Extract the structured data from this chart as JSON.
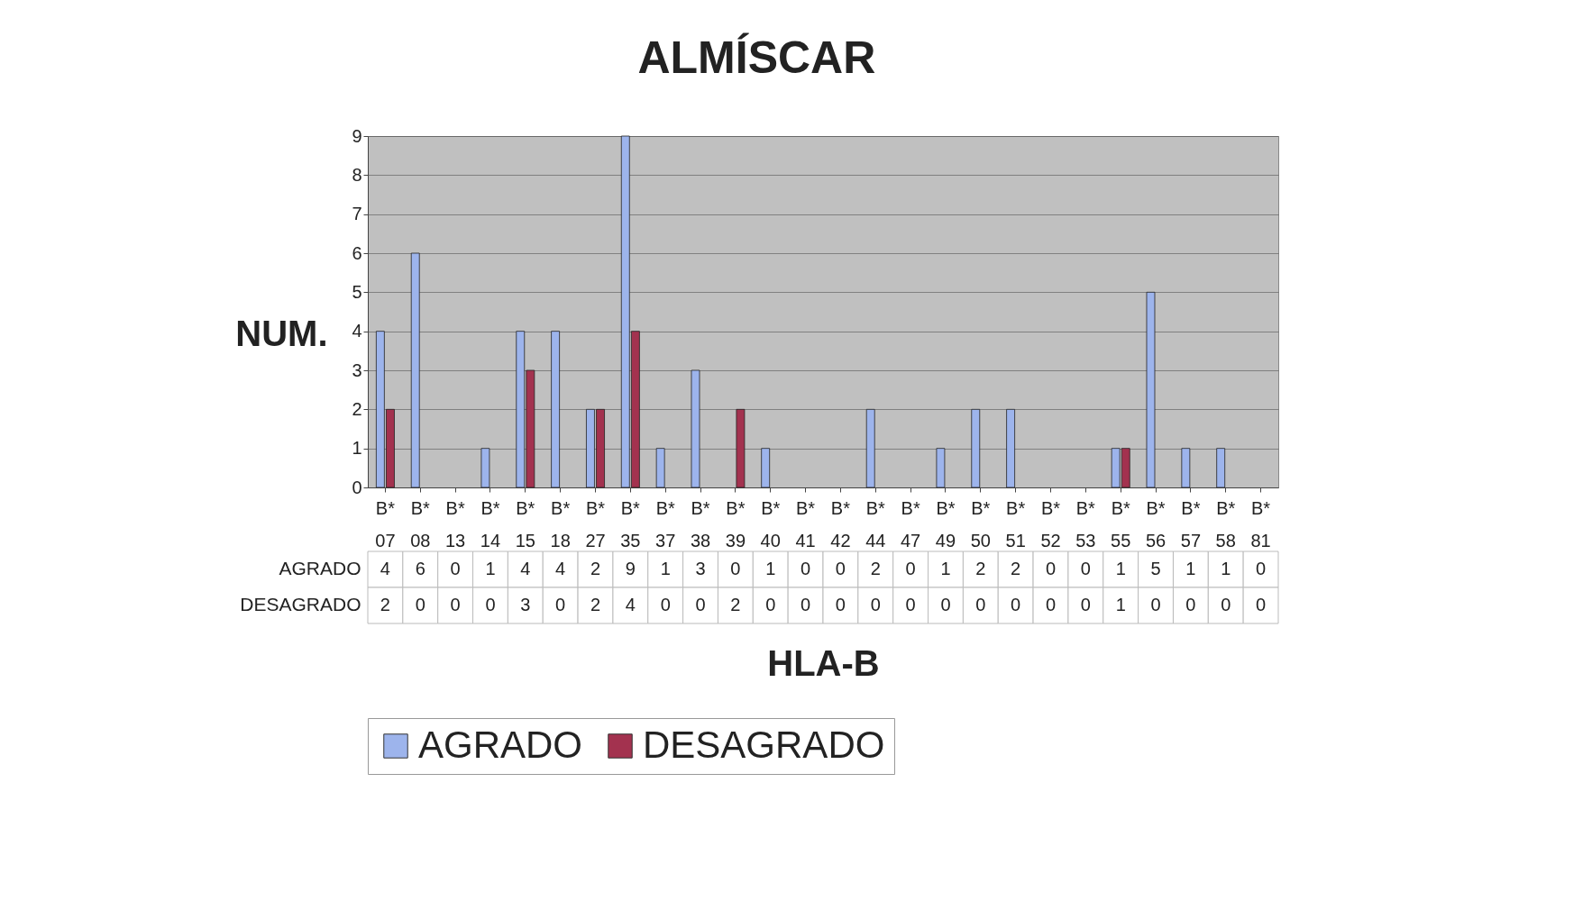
{
  "chart_data": {
    "type": "bar",
    "title": "ALMÍSCAR",
    "xlabel": "HLA-B",
    "ylabel": "NUM.",
    "categories": [
      "B* 07",
      "B* 08",
      "B* 13",
      "B* 14",
      "B* 15",
      "B* 18",
      "B* 27",
      "B* 35",
      "B* 37",
      "B* 38",
      "B* 39",
      "B* 40",
      "B* 41",
      "B* 42",
      "B* 44",
      "B* 47",
      "B* 49",
      "B* 50",
      "B* 51",
      "B* 52",
      "B* 53",
      "B* 55",
      "B* 56",
      "B* 57",
      "B* 58",
      "B* 81"
    ],
    "series": [
      {
        "name": "AGRADO",
        "color": "#9db4ec",
        "values": [
          4,
          6,
          0,
          1,
          4,
          4,
          2,
          9,
          1,
          3,
          0,
          1,
          0,
          0,
          2,
          0,
          1,
          2,
          2,
          0,
          0,
          1,
          5,
          1,
          1,
          0
        ]
      },
      {
        "name": "DESAGRADO",
        "color": "#a3324f",
        "values": [
          2,
          0,
          0,
          0,
          3,
          0,
          2,
          4,
          0,
          0,
          2,
          0,
          0,
          0,
          0,
          0,
          0,
          0,
          0,
          0,
          0,
          1,
          0,
          0,
          0,
          0
        ]
      }
    ],
    "ylim": [
      0,
      9
    ],
    "yticks": [
      0,
      1,
      2,
      3,
      4,
      5,
      6,
      7,
      8,
      9
    ],
    "grid": "y",
    "legend": "bottom",
    "data_labels": true
  }
}
